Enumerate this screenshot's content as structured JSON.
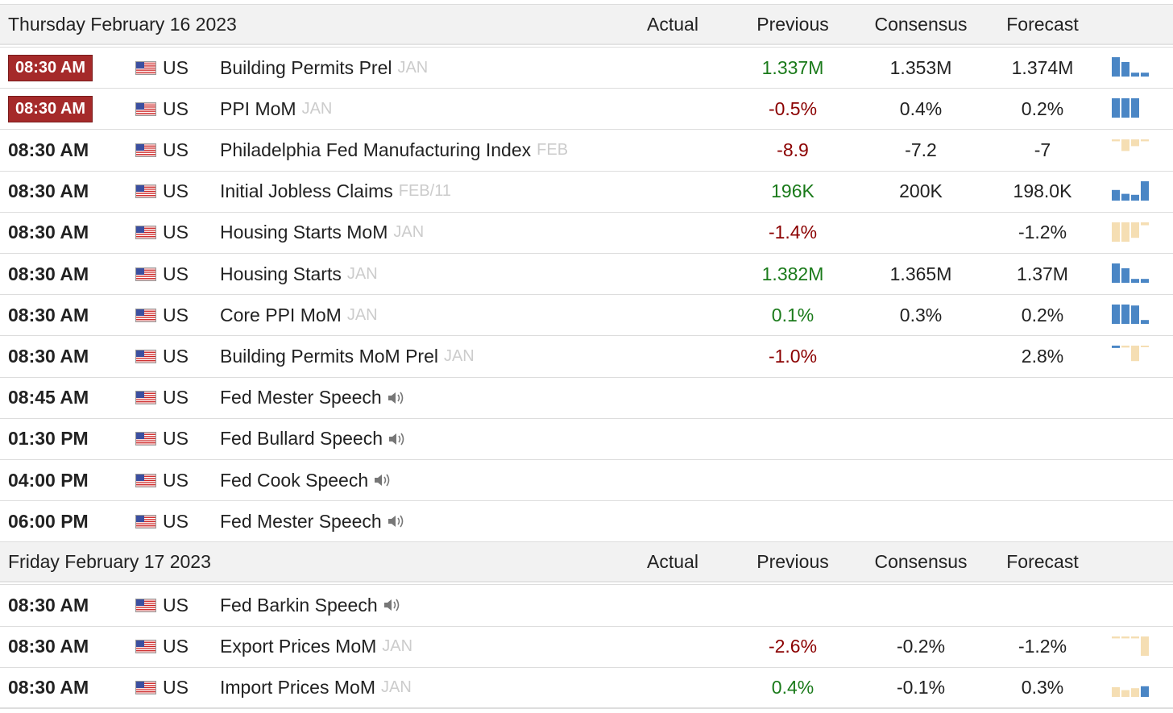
{
  "sections": [
    {
      "date": "Thursday February 16 2023",
      "columns": {
        "actual": "Actual",
        "previous": "Previous",
        "consensus": "Consensus",
        "forecast": "Forecast"
      },
      "events": [
        {
          "time": "08:30 AM",
          "highlight": true,
          "country": "US",
          "name": "Building Permits Prel",
          "period": "JAN",
          "speech": false,
          "actual": "",
          "previous": "1.337M",
          "previous_trend": "pos",
          "consensus": "1.353M",
          "forecast": "1.374M",
          "spark": "blue-desc"
        },
        {
          "time": "08:30 AM",
          "highlight": true,
          "country": "US",
          "name": "PPI MoM",
          "period": "JAN",
          "speech": false,
          "actual": "",
          "previous": "-0.5%",
          "previous_trend": "neg",
          "consensus": "0.4%",
          "forecast": "0.2%",
          "spark": "blue-full"
        },
        {
          "time": "08:30 AM",
          "highlight": false,
          "country": "US",
          "name": "Philadelphia Fed Manufacturing Index",
          "period": "FEB",
          "speech": false,
          "actual": "",
          "previous": "-8.9",
          "previous_trend": "neg",
          "consensus": "-7.2",
          "forecast": "-7",
          "spark": "tan-neg"
        },
        {
          "time": "08:30 AM",
          "highlight": false,
          "country": "US",
          "name": "Initial Jobless Claims",
          "period": "FEB/11",
          "speech": false,
          "actual": "",
          "previous": "196K",
          "previous_trend": "pos",
          "consensus": "200K",
          "forecast": "198.0K",
          "spark": "blue-rise"
        },
        {
          "time": "08:30 AM",
          "highlight": false,
          "country": "US",
          "name": "Housing Starts MoM",
          "period": "JAN",
          "speech": false,
          "actual": "",
          "previous": "-1.4%",
          "previous_trend": "neg",
          "consensus": "",
          "forecast": "-1.2%",
          "spark": "tan-down"
        },
        {
          "time": "08:30 AM",
          "highlight": false,
          "country": "US",
          "name": "Housing Starts",
          "period": "JAN",
          "speech": false,
          "actual": "",
          "previous": "1.382M",
          "previous_trend": "pos",
          "consensus": "1.365M",
          "forecast": "1.37M",
          "spark": "blue-desc"
        },
        {
          "time": "08:30 AM",
          "highlight": false,
          "country": "US",
          "name": "Core PPI MoM",
          "period": "JAN",
          "speech": false,
          "actual": "",
          "previous": "0.1%",
          "previous_trend": "pos",
          "consensus": "0.3%",
          "forecast": "0.2%",
          "spark": "blue-step"
        },
        {
          "time": "08:30 AM",
          "highlight": false,
          "country": "US",
          "name": "Building Permits MoM Prel",
          "period": "JAN",
          "speech": false,
          "actual": "",
          "previous": "-1.0%",
          "previous_trend": "neg",
          "consensus": "",
          "forecast": "2.8%",
          "spark": "mix-neg"
        },
        {
          "time": "08:45 AM",
          "highlight": false,
          "country": "US",
          "name": "Fed Mester Speech",
          "period": "",
          "speech": true,
          "actual": "",
          "previous": "",
          "previous_trend": "",
          "consensus": "",
          "forecast": "",
          "spark": ""
        },
        {
          "time": "01:30 PM",
          "highlight": false,
          "country": "US",
          "name": "Fed Bullard Speech",
          "period": "",
          "speech": true,
          "actual": "",
          "previous": "",
          "previous_trend": "",
          "consensus": "",
          "forecast": "",
          "spark": ""
        },
        {
          "time": "04:00 PM",
          "highlight": false,
          "country": "US",
          "name": "Fed Cook Speech",
          "period": "",
          "speech": true,
          "actual": "",
          "previous": "",
          "previous_trend": "",
          "consensus": "",
          "forecast": "",
          "spark": ""
        },
        {
          "time": "06:00 PM",
          "highlight": false,
          "country": "US",
          "name": "Fed Mester Speech",
          "period": "",
          "speech": true,
          "actual": "",
          "previous": "",
          "previous_trend": "",
          "consensus": "",
          "forecast": "",
          "spark": ""
        }
      ]
    },
    {
      "date": "Friday February 17 2023",
      "columns": {
        "actual": "Actual",
        "previous": "Previous",
        "consensus": "Consensus",
        "forecast": "Forecast"
      },
      "events": [
        {
          "time": "08:30 AM",
          "highlight": false,
          "country": "US",
          "name": "Fed Barkin Speech",
          "period": "",
          "speech": true,
          "actual": "",
          "previous": "",
          "previous_trend": "",
          "consensus": "",
          "forecast": "",
          "spark": ""
        },
        {
          "time": "08:30 AM",
          "highlight": false,
          "country": "US",
          "name": "Export Prices MoM",
          "period": "JAN",
          "speech": false,
          "actual": "",
          "previous": "-2.6%",
          "previous_trend": "neg",
          "consensus": "-0.2%",
          "forecast": "-1.2%",
          "spark": "tan-top"
        },
        {
          "time": "08:30 AM",
          "highlight": false,
          "country": "US",
          "name": "Import Prices MoM",
          "period": "JAN",
          "speech": false,
          "actual": "",
          "previous": "0.4%",
          "previous_trend": "pos",
          "consensus": "-0.1%",
          "forecast": "0.3%",
          "spark": "mix-pos"
        }
      ]
    }
  ],
  "colors": {
    "positive": "#1a7a1a",
    "negative": "#8b0000",
    "badge": "#a52a2a",
    "spark_blue": "#4a86c5",
    "spark_tan": "#f5deb3"
  }
}
